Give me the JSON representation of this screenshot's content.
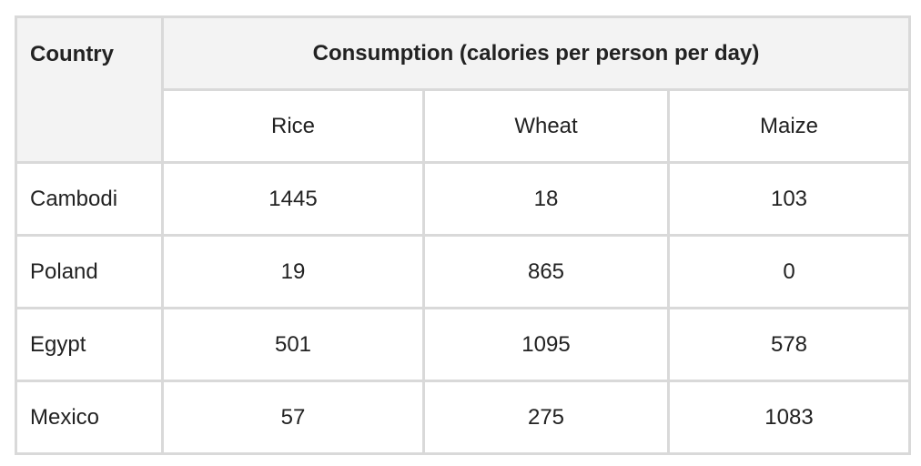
{
  "table": {
    "header": {
      "country": "Country",
      "group": "Consumption (calories per person per day)",
      "subcolumns": [
        "Rice",
        "Wheat",
        "Maize"
      ]
    },
    "rows": [
      {
        "country": "Cambodi",
        "values": [
          "1445",
          "18",
          "103"
        ]
      },
      {
        "country": "Poland",
        "values": [
          "19",
          "865",
          "0"
        ]
      },
      {
        "country": "Egypt",
        "values": [
          "501",
          "1095",
          "578"
        ]
      },
      {
        "country": "Mexico",
        "values": [
          "57",
          "275",
          "1083"
        ]
      }
    ]
  }
}
